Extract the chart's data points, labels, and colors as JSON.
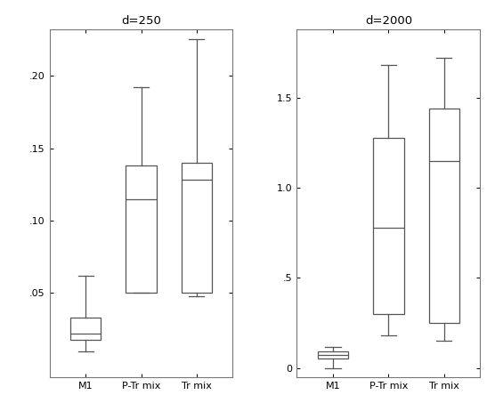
{
  "panel1": {
    "title": "d=250",
    "categories": [
      "M1",
      "P-Tr mix",
      "Tr mix"
    ],
    "boxes": [
      {
        "whislo": 0.01,
        "q1": 0.018,
        "med": 0.022,
        "q3": 0.033,
        "whishi": 0.062
      },
      {
        "whislo": 0.05,
        "q1": 0.05,
        "med": 0.115,
        "q3": 0.138,
        "whishi": 0.192
      },
      {
        "whislo": 0.048,
        "q1": 0.05,
        "med": 0.128,
        "q3": 0.14,
        "whishi": 0.225
      }
    ],
    "ylim": [
      -0.008,
      0.232
    ],
    "yticks": [
      0.05,
      0.1,
      0.15,
      0.2
    ],
    "yticklabels": [
      ".05",
      ".10",
      ".15",
      ".20"
    ]
  },
  "panel2": {
    "title": "d=2000",
    "categories": [
      "M1",
      "P-Tr mix",
      "Tr mix"
    ],
    "boxes": [
      {
        "whislo": 0.0,
        "q1": 0.055,
        "med": 0.075,
        "q3": 0.095,
        "whishi": 0.115
      },
      {
        "whislo": 0.18,
        "q1": 0.3,
        "med": 0.78,
        "q3": 1.28,
        "whishi": 1.68
      },
      {
        "whislo": 0.15,
        "q1": 0.25,
        "med": 1.15,
        "q3": 1.44,
        "whishi": 1.72
      }
    ],
    "ylim": [
      -0.05,
      1.88
    ],
    "yticks": [
      0.0,
      0.5,
      1.0,
      1.5
    ],
    "yticklabels": [
      "0",
      ".5",
      "1.0",
      "1.5"
    ]
  },
  "box_facecolor": "white",
  "box_edgecolor": "#555555",
  "mediancolor": "#555555",
  "whiskercolor": "#555555",
  "capcolor": "#555555",
  "spinecolor": "#777777",
  "background": "white",
  "figsize": [
    5.56,
    4.71
  ],
  "dpi": 100
}
